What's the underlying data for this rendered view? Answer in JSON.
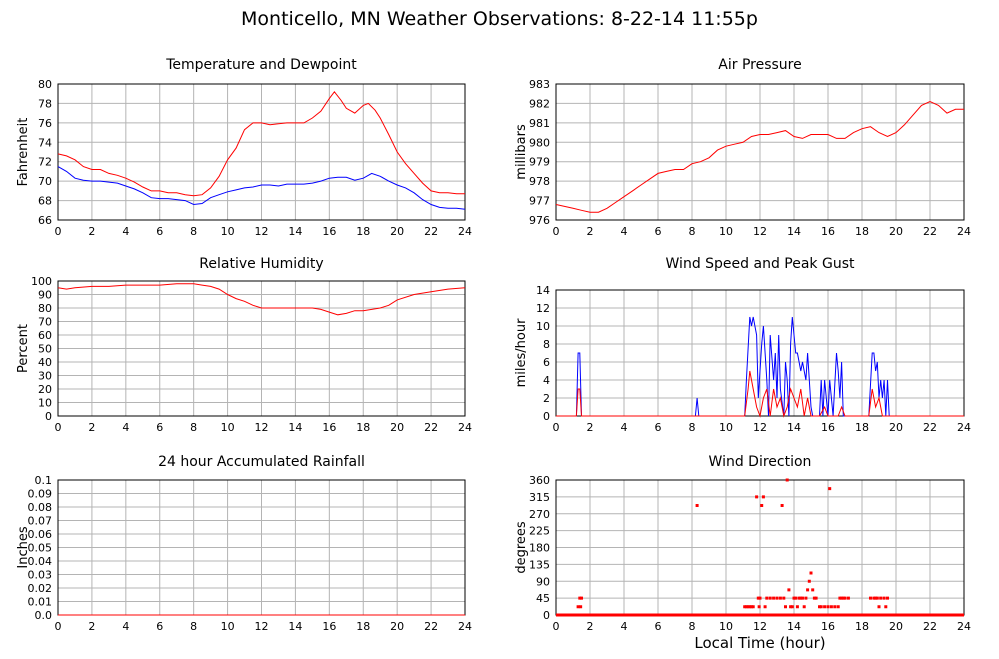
{
  "page": {
    "title": "Monticello, MN Weather Observations: 8-22-14 11:55p",
    "xlabel": "Local Time (hour)"
  },
  "colors": {
    "primary": "#ff0000",
    "secondary": "#0000ff",
    "grid": "#b4b4b4",
    "frame": "#000000"
  },
  "chart_data": [
    {
      "id": "temp",
      "type": "line",
      "title": "Temperature and Dewpoint",
      "ylabel": "Fahrenheit",
      "xlim": [
        0,
        24
      ],
      "ylim": [
        66,
        80
      ],
      "x_ticks": [
        0,
        2,
        4,
        6,
        8,
        10,
        12,
        14,
        16,
        18,
        20,
        22,
        24
      ],
      "y_ticks": [
        66,
        68,
        70,
        72,
        74,
        76,
        78,
        80
      ],
      "grid": true,
      "series": [
        {
          "color": "#ff0000",
          "style": "line",
          "x": [
            0,
            0.5,
            1,
            1.5,
            2,
            2.5,
            3,
            3.5,
            4,
            4.5,
            5,
            5.5,
            6,
            6.5,
            7,
            7.5,
            8,
            8.5,
            9,
            9.5,
            10,
            10.5,
            11,
            11.5,
            12,
            12.5,
            13,
            13.5,
            14,
            14.5,
            15,
            15.5,
            16,
            16.3,
            16.7,
            17,
            17.5,
            18,
            18.3,
            18.7,
            19,
            19.5,
            20,
            20.5,
            21,
            21.5,
            22,
            22.5,
            23,
            23.5,
            24
          ],
          "y": [
            72.8,
            72.6,
            72.2,
            71.5,
            71.2,
            71.2,
            70.8,
            70.6,
            70.3,
            69.9,
            69.4,
            69.0,
            69.0,
            68.8,
            68.8,
            68.6,
            68.5,
            68.6,
            69.3,
            70.5,
            72.2,
            73.4,
            75.3,
            76.0,
            76.0,
            75.8,
            75.9,
            76.0,
            76.0,
            76.0,
            76.5,
            77.2,
            78.5,
            79.2,
            78.3,
            77.5,
            77.0,
            77.8,
            78.0,
            77.3,
            76.5,
            74.8,
            73.0,
            71.8,
            70.8,
            69.8,
            69.0,
            68.8,
            68.8,
            68.7,
            68.7
          ]
        },
        {
          "color": "#0000ff",
          "style": "line",
          "x": [
            0,
            0.5,
            1,
            1.5,
            2,
            2.5,
            3,
            3.5,
            4,
            4.5,
            5,
            5.5,
            6,
            6.5,
            7,
            7.5,
            8,
            8.5,
            9,
            9.5,
            10,
            10.5,
            11,
            11.5,
            12,
            12.5,
            13,
            13.5,
            14,
            14.5,
            15,
            15.5,
            16,
            16.5,
            17,
            17.5,
            18,
            18.5,
            19,
            19.5,
            20,
            20.5,
            21,
            21.5,
            22,
            22.5,
            23,
            23.5,
            24
          ],
          "y": [
            71.5,
            71.0,
            70.3,
            70.1,
            70.0,
            70.0,
            69.9,
            69.8,
            69.5,
            69.2,
            68.8,
            68.3,
            68.2,
            68.2,
            68.1,
            68.0,
            67.6,
            67.7,
            68.3,
            68.6,
            68.9,
            69.1,
            69.3,
            69.4,
            69.6,
            69.6,
            69.5,
            69.7,
            69.7,
            69.7,
            69.8,
            70.0,
            70.3,
            70.4,
            70.4,
            70.1,
            70.3,
            70.8,
            70.5,
            70.0,
            69.6,
            69.3,
            68.8,
            68.1,
            67.6,
            67.3,
            67.2,
            67.2,
            67.1
          ]
        }
      ]
    },
    {
      "id": "pressure",
      "type": "line",
      "title": "Air Pressure",
      "ylabel": "millibars",
      "xlim": [
        0,
        24
      ],
      "ylim": [
        976,
        983
      ],
      "x_ticks": [
        0,
        2,
        4,
        6,
        8,
        10,
        12,
        14,
        16,
        18,
        20,
        22,
        24
      ],
      "y_ticks": [
        976,
        977,
        978,
        979,
        980,
        981,
        982,
        983
      ],
      "grid": true,
      "series": [
        {
          "color": "#ff0000",
          "style": "line",
          "x": [
            0,
            0.5,
            1,
            1.5,
            2,
            2.5,
            3,
            3.5,
            4,
            4.5,
            5,
            5.5,
            6,
            6.5,
            7,
            7.5,
            8,
            8.5,
            9,
            9.5,
            10,
            10.5,
            11,
            11.5,
            12,
            12.5,
            13,
            13.5,
            14,
            14.5,
            15,
            15.5,
            16,
            16.5,
            17,
            17.5,
            18,
            18.5,
            19,
            19.5,
            20,
            20.5,
            21,
            21.5,
            22,
            22.5,
            23,
            23.5,
            24
          ],
          "y": [
            976.8,
            976.7,
            976.6,
            976.5,
            976.4,
            976.4,
            976.6,
            976.9,
            977.2,
            977.5,
            977.8,
            978.1,
            978.4,
            978.5,
            978.6,
            978.6,
            978.9,
            979.0,
            979.2,
            979.6,
            979.8,
            979.9,
            980.0,
            980.3,
            980.4,
            980.4,
            980.5,
            980.6,
            980.3,
            980.2,
            980.4,
            980.4,
            980.4,
            980.2,
            980.2,
            980.5,
            980.7,
            980.8,
            980.5,
            980.3,
            980.5,
            980.9,
            981.4,
            981.9,
            982.1,
            981.9,
            981.5,
            981.7,
            981.7
          ]
        }
      ]
    },
    {
      "id": "humidity",
      "type": "line",
      "title": "Relative Humidity",
      "ylabel": "Percent",
      "xlim": [
        0,
        24
      ],
      "ylim": [
        0,
        100
      ],
      "x_ticks": [
        0,
        2,
        4,
        6,
        8,
        10,
        12,
        14,
        16,
        18,
        20,
        22,
        24
      ],
      "y_ticks": [
        0,
        10,
        20,
        30,
        40,
        50,
        60,
        70,
        80,
        90,
        100
      ],
      "grid": true,
      "series": [
        {
          "color": "#ff0000",
          "style": "line",
          "x": [
            0,
            0.5,
            1,
            2,
            3,
            4,
            5,
            6,
            7,
            8,
            8.5,
            9,
            9.5,
            10,
            10.5,
            11,
            11.5,
            12,
            13,
            14,
            15,
            15.5,
            16,
            16.5,
            17,
            17.5,
            18,
            18.5,
            19,
            19.5,
            20,
            21,
            22,
            23,
            24
          ],
          "y": [
            95,
            94,
            95,
            96,
            96,
            97,
            97,
            97,
            98,
            98,
            97,
            96,
            94,
            90,
            87,
            85,
            82,
            80,
            80,
            80,
            80,
            79,
            77,
            75,
            76,
            78,
            78,
            79,
            80,
            82,
            86,
            90,
            92,
            94,
            95
          ]
        }
      ]
    },
    {
      "id": "wind",
      "type": "line",
      "title": "Wind Speed and Peak Gust",
      "ylabel": "miles/hour",
      "xlim": [
        0,
        24
      ],
      "ylim": [
        0,
        14
      ],
      "x_ticks": [
        0,
        2,
        4,
        6,
        8,
        10,
        12,
        14,
        16,
        18,
        20,
        22,
        24
      ],
      "y_ticks": [
        0,
        2,
        4,
        6,
        8,
        10,
        12,
        14
      ],
      "grid": true,
      "series": [
        {
          "color": "#0000ff",
          "style": "line",
          "x": [
            0,
            1.2,
            1.3,
            1.4,
            1.5,
            1.6,
            8.2,
            8.3,
            8.4,
            11.1,
            11.2,
            11.4,
            11.5,
            11.6,
            11.8,
            11.9,
            12.1,
            12.2,
            12.4,
            12.5,
            12.6,
            12.8,
            12.9,
            13.0,
            13.1,
            13.2,
            13.4,
            13.5,
            13.6,
            13.7,
            13.8,
            13.9,
            14.0,
            14.1,
            14.2,
            14.4,
            14.5,
            14.7,
            14.8,
            15.0,
            15.1,
            15.3,
            15.5,
            15.6,
            15.7,
            15.8,
            16.0,
            16.1,
            16.2,
            16.3,
            16.5,
            16.6,
            16.7,
            16.8,
            16.9,
            17.0,
            17.1,
            17.2,
            17.3,
            17.4,
            17.5,
            18.4,
            18.6,
            18.7,
            18.8,
            18.9,
            19.0,
            19.1,
            19.2,
            19.3,
            19.4,
            19.5,
            19.6,
            19.7,
            24
          ],
          "y": [
            0,
            0,
            7,
            7,
            0,
            0,
            0,
            2,
            0,
            0,
            4,
            11,
            10,
            11,
            9,
            2,
            8,
            10,
            4,
            0,
            9,
            4,
            7,
            2,
            9,
            3,
            0,
            6,
            4,
            0,
            8,
            11,
            9,
            7,
            7,
            5,
            6,
            4,
            7,
            1,
            0,
            0,
            0,
            4,
            0,
            4,
            0,
            4,
            2,
            0,
            7,
            5,
            2,
            6,
            0,
            0,
            0,
            0,
            0,
            0,
            0,
            0,
            7,
            7,
            5,
            6,
            2,
            4,
            2,
            4,
            0,
            4,
            0,
            0,
            0
          ]
        },
        {
          "color": "#ff0000",
          "style": "line",
          "x": [
            0,
            1.2,
            1.3,
            1.4,
            1.5,
            11.1,
            11.3,
            11.4,
            11.6,
            11.8,
            12.0,
            12.2,
            12.4,
            12.6,
            12.8,
            13.0,
            13.2,
            13.4,
            13.6,
            13.8,
            14.0,
            14.2,
            14.4,
            14.6,
            14.8,
            15.0,
            15.5,
            15.8,
            16.0,
            16.4,
            16.6,
            16.8,
            17.0,
            17.2,
            18.4,
            18.6,
            18.8,
            19.0,
            19.2,
            24
          ],
          "y": [
            0,
            0,
            3,
            3,
            0,
            0,
            3,
            5,
            3,
            1,
            0,
            2,
            3,
            0,
            3,
            1,
            2,
            0,
            1,
            3,
            2,
            1,
            3,
            0,
            2,
            0,
            0,
            1,
            0,
            0,
            0,
            1,
            0,
            0,
            0,
            3,
            1,
            2,
            0,
            0
          ]
        }
      ]
    },
    {
      "id": "rain",
      "type": "line",
      "title": "24 hour Accumulated Rainfall",
      "ylabel": "Inches",
      "xlim": [
        0,
        24
      ],
      "ylim": [
        0,
        0.1
      ],
      "x_ticks": [
        0,
        2,
        4,
        6,
        8,
        10,
        12,
        14,
        16,
        18,
        20,
        22,
        24
      ],
      "y_ticks": [
        0,
        0.01,
        0.02,
        0.03,
        0.04,
        0.05,
        0.06,
        0.07,
        0.08,
        0.09,
        0.1
      ],
      "y_tick_labels": [
        "0.0",
        "0.01",
        "0.02",
        "0.03",
        "0.04",
        "0.05",
        "0.06",
        "0.07",
        "0.08",
        "0.09",
        "0.1"
      ],
      "grid": true,
      "series": [
        {
          "color": "#ff0000",
          "style": "line",
          "x": [
            0,
            24
          ],
          "y": [
            0,
            0
          ]
        }
      ]
    },
    {
      "id": "direction",
      "type": "scatter",
      "title": "Wind Direction",
      "ylabel": "degrees",
      "xlim": [
        0,
        24
      ],
      "ylim": [
        0,
        360
      ],
      "x_ticks": [
        0,
        2,
        4,
        6,
        8,
        10,
        12,
        14,
        16,
        18,
        20,
        22,
        24
      ],
      "y_ticks": [
        0,
        45,
        90,
        135,
        180,
        225,
        270,
        315,
        360
      ],
      "grid": true,
      "series": [
        {
          "color": "#ff0000",
          "style": "scatter",
          "x": [
            1.3,
            1.4,
            1.45,
            1.5,
            8.3,
            11.0,
            11.1,
            11.2,
            11.3,
            11.4,
            11.5,
            11.6,
            11.8,
            11.9,
            11.95,
            12.0,
            12.1,
            12.2,
            12.3,
            12.4,
            12.6,
            12.8,
            13.0,
            13.2,
            13.3,
            13.4,
            13.5,
            13.6,
            13.7,
            13.8,
            13.9,
            14.0,
            14.1,
            14.2,
            14.3,
            14.4,
            14.5,
            14.6,
            14.7,
            14.8,
            14.9,
            15.0,
            15.1,
            15.2,
            15.3,
            15.5,
            15.6,
            15.8,
            16.0,
            16.1,
            16.2,
            16.4,
            16.6,
            16.7,
            16.8,
            16.9,
            17.0,
            17.2,
            18.5,
            18.7,
            18.8,
            18.9,
            19.0,
            19.1,
            19.3,
            19.4,
            19.5
          ],
          "y": [
            22,
            45,
            22,
            45,
            292,
            0,
            22,
            22,
            22,
            22,
            22,
            22,
            315,
            45,
            22,
            45,
            292,
            315,
            22,
            45,
            45,
            45,
            45,
            45,
            292,
            45,
            22,
            360,
            67,
            22,
            22,
            45,
            45,
            22,
            45,
            45,
            45,
            22,
            45,
            67,
            90,
            112,
            67,
            45,
            45,
            22,
            22,
            22,
            22,
            337,
            22,
            22,
            22,
            45,
            45,
            45,
            45,
            45,
            45,
            45,
            45,
            45,
            22,
            45,
            45,
            22,
            45
          ]
        },
        {
          "color": "#ff0000",
          "style": "baseline",
          "x": [
            0,
            24
          ],
          "y": [
            0,
            0
          ]
        }
      ]
    }
  ]
}
